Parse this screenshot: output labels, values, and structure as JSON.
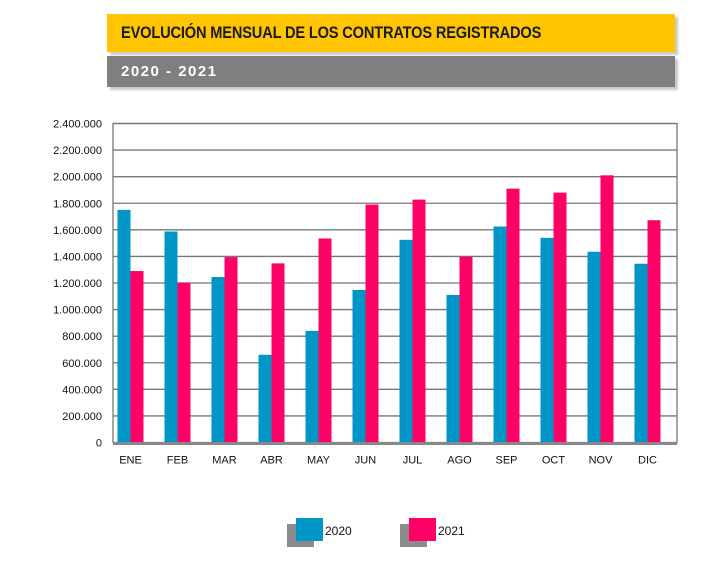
{
  "header": {
    "title": "EVOLUCIÓN MENSUAL DE LOS CONTRATOS REGISTRADOS",
    "subtitle": "2020 - 2021"
  },
  "chart_data": {
    "type": "bar",
    "categories": [
      "ENE",
      "FEB",
      "MAR",
      "ABR",
      "MAY",
      "JUN",
      "JUL",
      "AGO",
      "SEP",
      "OCT",
      "NOV",
      "DIC"
    ],
    "series": [
      {
        "name": "2020",
        "color": "#0096c8",
        "values": [
          1750000,
          1587500,
          1245000,
          660000,
          840000,
          1147500,
          1525000,
          1110000,
          1625000,
          1540000,
          1435000,
          1345000
        ]
      },
      {
        "name": "2021",
        "color": "#ff0066",
        "values": [
          1290000,
          1202500,
          1395000,
          1347500,
          1535000,
          1790000,
          1827500,
          1397500,
          1910000,
          1880000,
          2010000,
          1672500
        ]
      }
    ],
    "ylim": [
      0,
      2400000
    ],
    "yticks": [
      "0",
      "200.000",
      "400.000",
      "600.000",
      "800.000",
      "1.000.000",
      "1.200.000",
      "1.400.000",
      "1.600.000",
      "1.800.000",
      "2.000.000",
      "2.200.000",
      "2.400.000"
    ],
    "grid": true,
    "legend": "bottom"
  }
}
